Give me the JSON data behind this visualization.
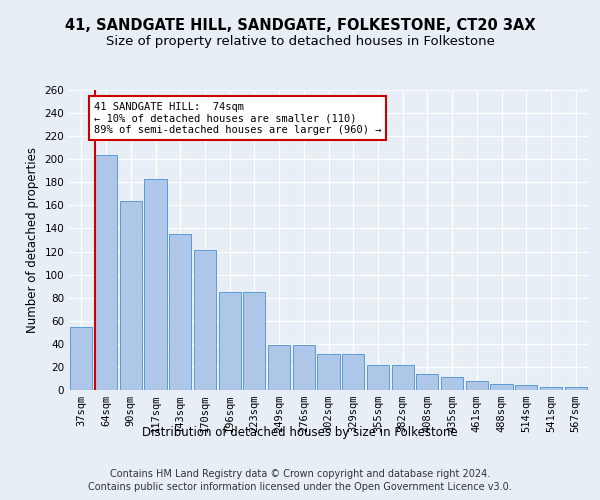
{
  "title": "41, SANDGATE HILL, SANDGATE, FOLKESTONE, CT20 3AX",
  "subtitle": "Size of property relative to detached houses in Folkestone",
  "xlabel": "Distribution of detached houses by size in Folkestone",
  "ylabel": "Number of detached properties",
  "categories": [
    "37sqm",
    "64sqm",
    "90sqm",
    "117sqm",
    "143sqm",
    "170sqm",
    "196sqm",
    "223sqm",
    "249sqm",
    "276sqm",
    "302sqm",
    "329sqm",
    "355sqm",
    "382sqm",
    "408sqm",
    "435sqm",
    "461sqm",
    "488sqm",
    "514sqm",
    "541sqm",
    "567sqm"
  ],
  "values": [
    55,
    204,
    164,
    183,
    135,
    121,
    85,
    85,
    39,
    39,
    31,
    31,
    22,
    22,
    14,
    11,
    8,
    5,
    4,
    3,
    3
  ],
  "bar_color": "#aec6e8",
  "bar_edge_color": "#5b9bd5",
  "ylim": [
    0,
    260
  ],
  "yticks": [
    0,
    20,
    40,
    60,
    80,
    100,
    120,
    140,
    160,
    180,
    200,
    220,
    240,
    260
  ],
  "red_line_x": 1,
  "annotation_text": "41 SANDGATE HILL:  74sqm\n← 10% of detached houses are smaller (110)\n89% of semi-detached houses are larger (960) →",
  "annotation_box_color": "#ffffff",
  "annotation_box_edge": "#cc0000",
  "footer_line1": "Contains HM Land Registry data © Crown copyright and database right 2024.",
  "footer_line2": "Contains public sector information licensed under the Open Government Licence v3.0.",
  "bg_color": "#e8eef6",
  "plot_bg_color": "#e8eef6",
  "grid_color": "#ffffff",
  "title_fontsize": 10.5,
  "subtitle_fontsize": 9.5,
  "axis_label_fontsize": 8.5,
  "tick_fontsize": 7.5,
  "footer_fontsize": 7
}
